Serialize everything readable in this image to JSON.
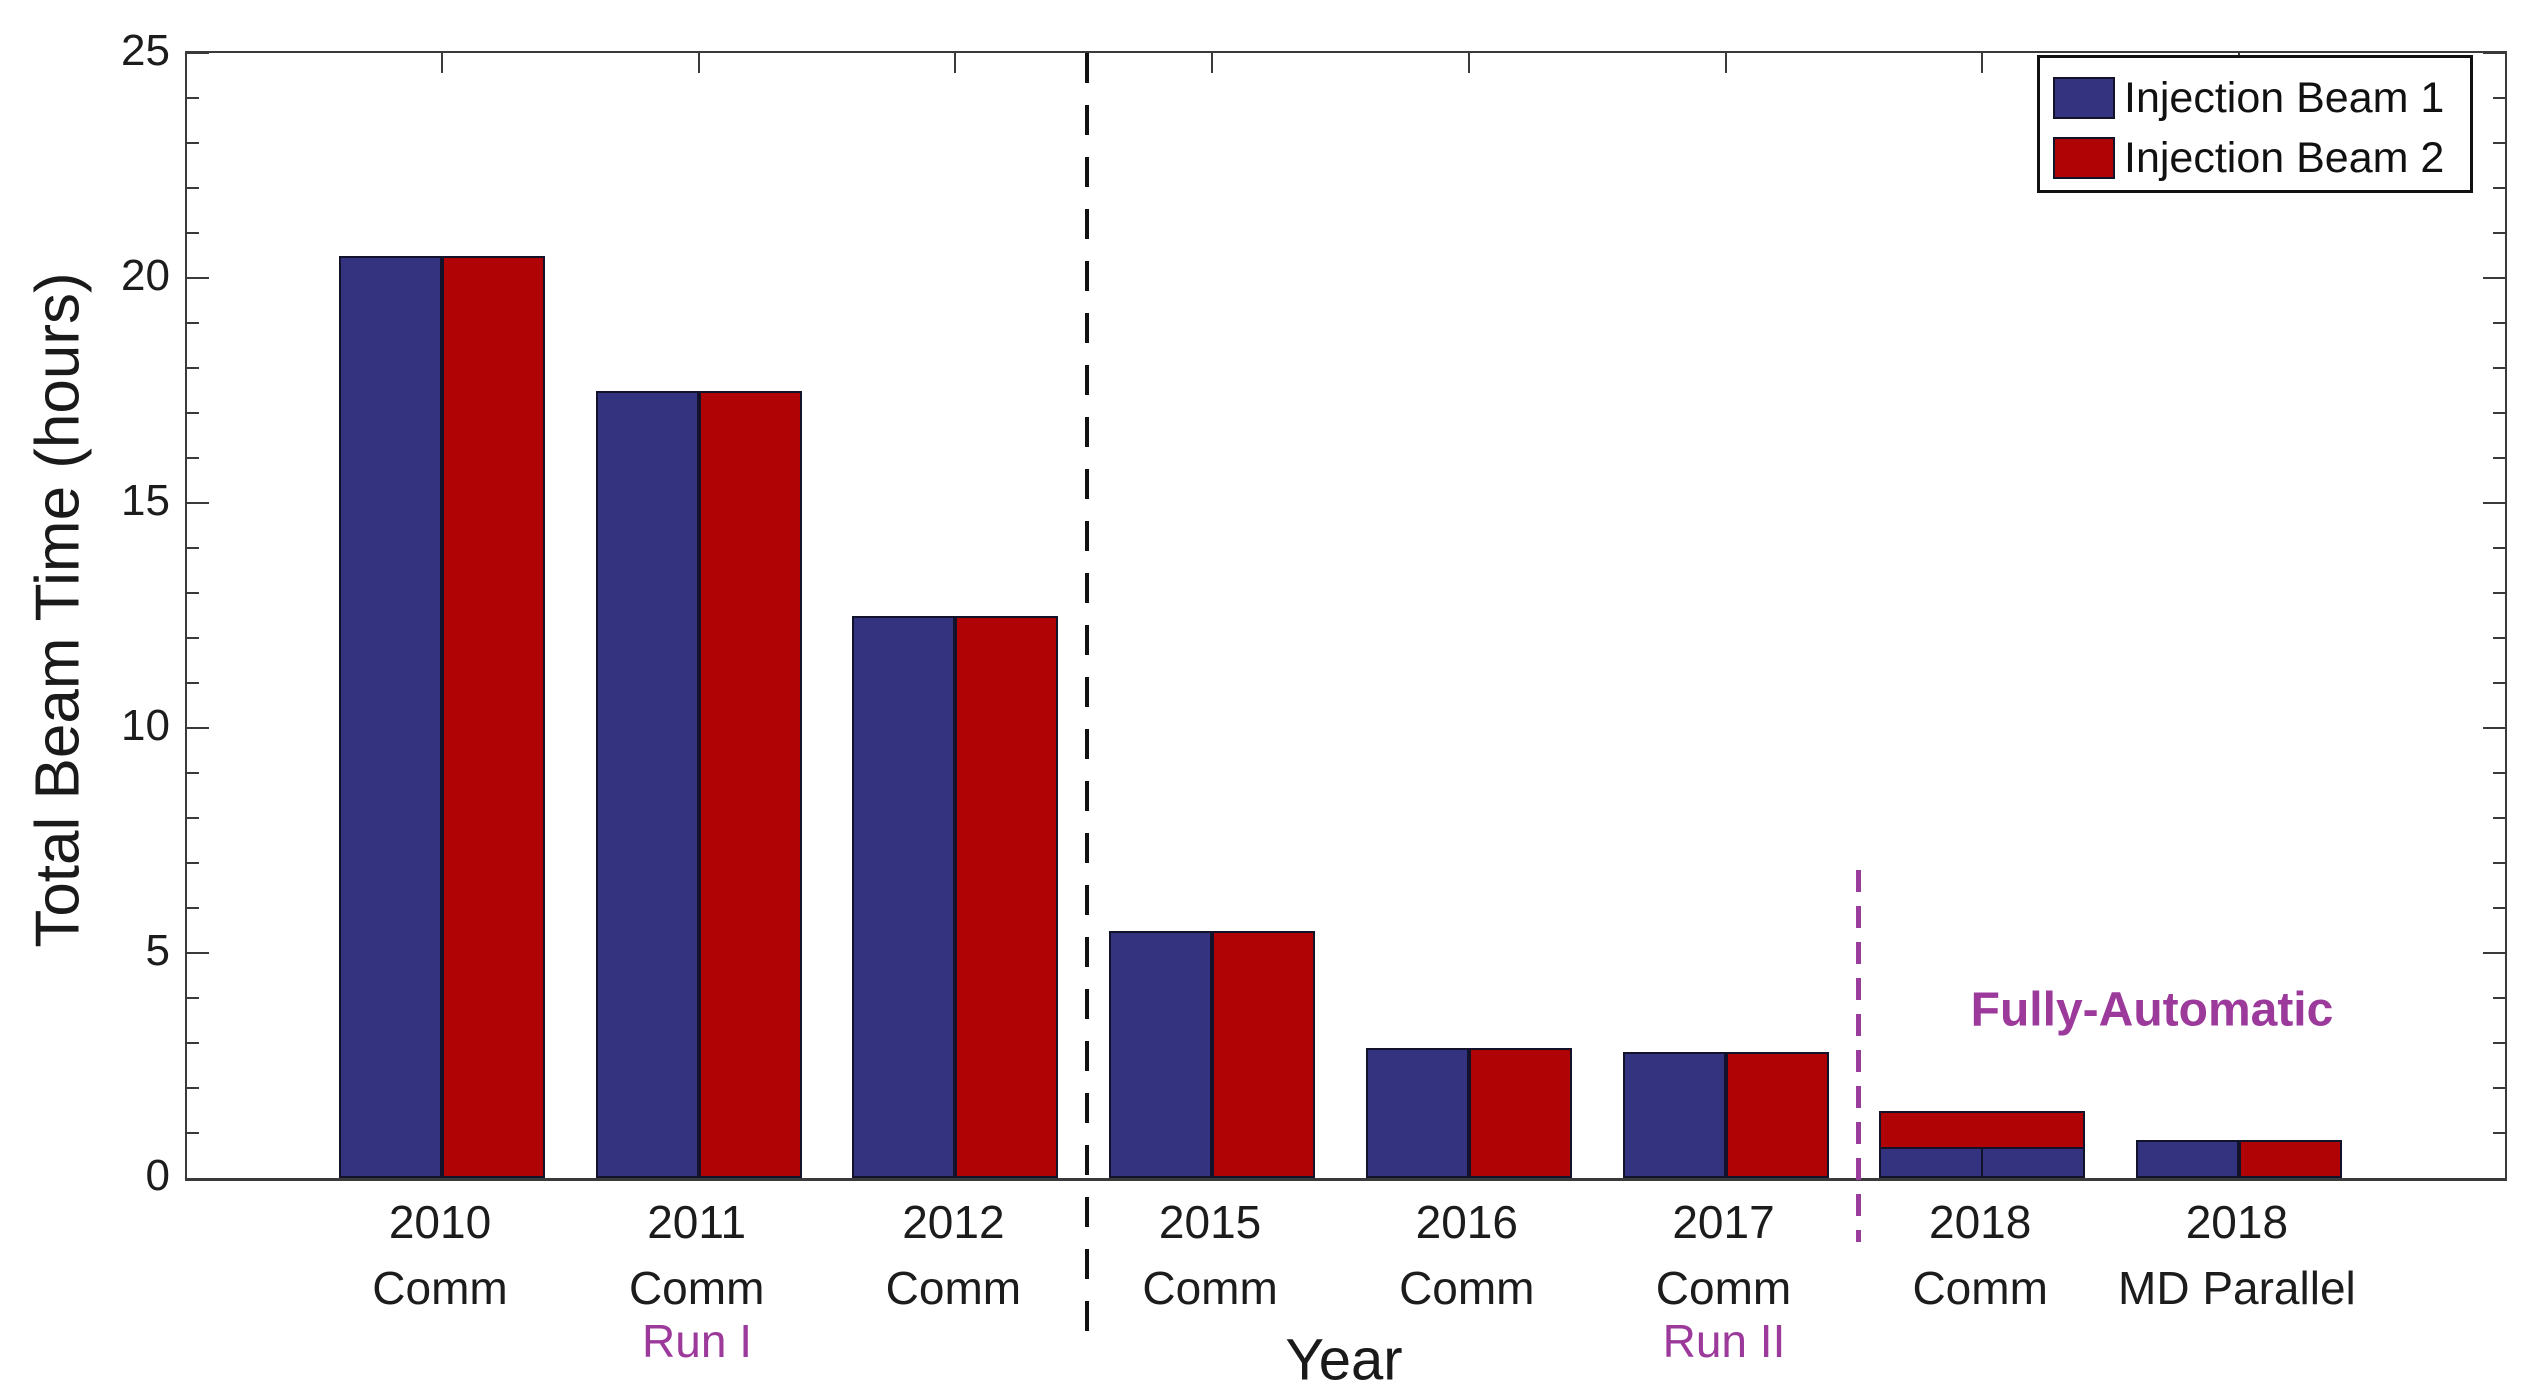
{
  "chart_data": {
    "type": "bar",
    "title": "",
    "xlabel": "Year",
    "ylabel": "Total Beam Time (hours)",
    "ylim": [
      0,
      25
    ],
    "yticks": [
      0,
      5,
      10,
      15,
      20,
      25
    ],
    "minor_tick_step": 1,
    "grid": false,
    "legend": {
      "position": "top-right",
      "entries": [
        {
          "label": "Injection Beam 1",
          "color": "#333380"
        },
        {
          "label": "Injection Beam 2",
          "color": "#B00306"
        }
      ]
    },
    "categories": [
      {
        "year": "2010",
        "sub": "Comm"
      },
      {
        "year": "2011",
        "sub": "Comm"
      },
      {
        "year": "2012",
        "sub": "Comm"
      },
      {
        "year": "2015",
        "sub": "Comm"
      },
      {
        "year": "2016",
        "sub": "Comm"
      },
      {
        "year": "2017",
        "sub": "Comm"
      },
      {
        "year": "2018",
        "sub": "Comm"
      },
      {
        "year": "2018",
        "sub": "MD Parallel"
      }
    ],
    "series": [
      {
        "name": "Injection Beam 1",
        "color": "#333380",
        "values": [
          20.5,
          17.5,
          12.5,
          5.5,
          2.9,
          2.8,
          0.7,
          0.85
        ]
      },
      {
        "name": "Injection Beam 2",
        "color": "#B00306",
        "values": [
          20.5,
          17.5,
          12.5,
          5.5,
          2.9,
          2.8,
          1.5,
          0.85
        ]
      }
    ],
    "overlap_group_index": 6,
    "separators": [
      {
        "after_category_index": 2,
        "style": "dashed",
        "color": "#111111"
      },
      {
        "after_category_index": 5,
        "style": "dashed",
        "color": "#9C3A9C"
      }
    ],
    "annotations": {
      "run_i": "Run I",
      "run_ii": "Run II",
      "fully_automatic": "Fully-Automatic"
    },
    "annotation_color": "#9C3A9C"
  }
}
